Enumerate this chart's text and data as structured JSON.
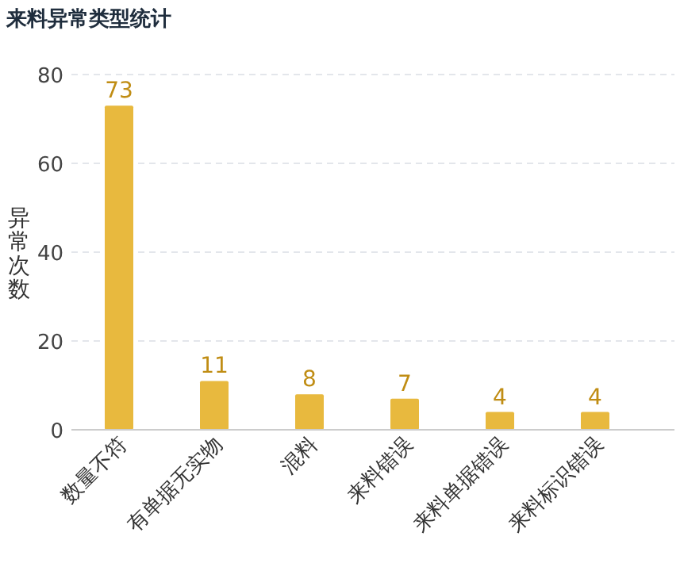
{
  "chart_data": {
    "type": "bar",
    "title": "来料异常类型统计",
    "ylabel": "异常次数",
    "categories": [
      "数量不符",
      "有单据无实物",
      "混料",
      "来料错误",
      "来料单据错误",
      "来料标识错误"
    ],
    "values": [
      73,
      11,
      8,
      7,
      4,
      4
    ],
    "color": "#e8b93e",
    "ylim": [
      0,
      80
    ],
    "yticks": [
      0,
      20,
      40,
      60,
      80
    ],
    "grid": "y",
    "data_labels": true
  }
}
